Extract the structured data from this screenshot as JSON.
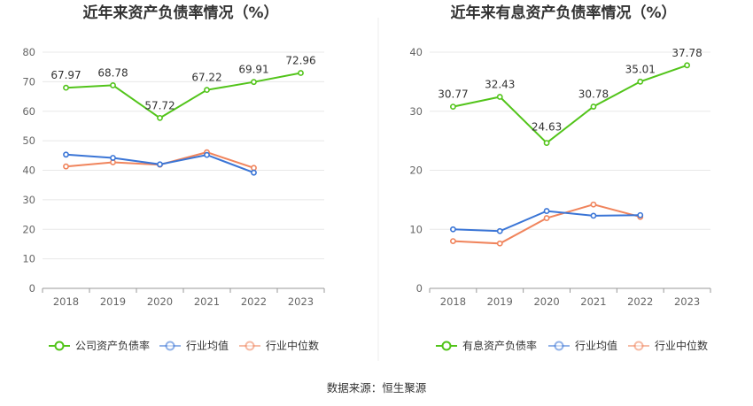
{
  "chart_data": [
    {
      "type": "line",
      "title": "近年来资产负债率情况（%）",
      "categories": [
        "2018",
        "2019",
        "2020",
        "2021",
        "2022",
        "2023"
      ],
      "ylim": [
        0,
        80
      ],
      "yticks": [
        0,
        10,
        20,
        30,
        40,
        50,
        60,
        70,
        80
      ],
      "grid": true,
      "legend_position": "bottom",
      "series": [
        {
          "name": "公司资产负债率",
          "color": "#52c41a",
          "values": [
            67.97,
            68.78,
            57.72,
            67.22,
            69.91,
            72.96
          ],
          "labels": [
            "67.97",
            "68.78",
            "57.72",
            "67.22",
            "69.91",
            "72.96"
          ]
        },
        {
          "name": "行业均值",
          "color": "#3a75d6",
          "values": [
            45.3,
            44.2,
            42.0,
            45.2,
            39.2,
            null
          ]
        },
        {
          "name": "行业中位数",
          "color": "#f0845c",
          "values": [
            41.3,
            42.7,
            41.9,
            46.1,
            40.8,
            null
          ]
        }
      ]
    },
    {
      "type": "line",
      "title": "近年来有息资产负债率情况（%）",
      "categories": [
        "2018",
        "2019",
        "2020",
        "2021",
        "2022",
        "2023"
      ],
      "ylim": [
        0,
        40
      ],
      "yticks": [
        0,
        10,
        20,
        30,
        40
      ],
      "grid": true,
      "legend_position": "bottom",
      "series": [
        {
          "name": "有息资产负债率",
          "color": "#52c41a",
          "values": [
            30.77,
            32.43,
            24.63,
            30.78,
            35.01,
            37.78
          ],
          "labels": [
            "30.77",
            "32.43",
            "24.63",
            "30.78",
            "35.01",
            "37.78"
          ]
        },
        {
          "name": "行业均值",
          "color": "#3a75d6",
          "values": [
            10.0,
            9.7,
            13.1,
            12.3,
            12.4,
            null
          ]
        },
        {
          "name": "行业中位数",
          "color": "#f0845c",
          "values": [
            8.0,
            7.6,
            11.9,
            14.2,
            12.1,
            null
          ]
        }
      ]
    }
  ],
  "footer": {
    "source": "数据来源：恒生聚源"
  }
}
